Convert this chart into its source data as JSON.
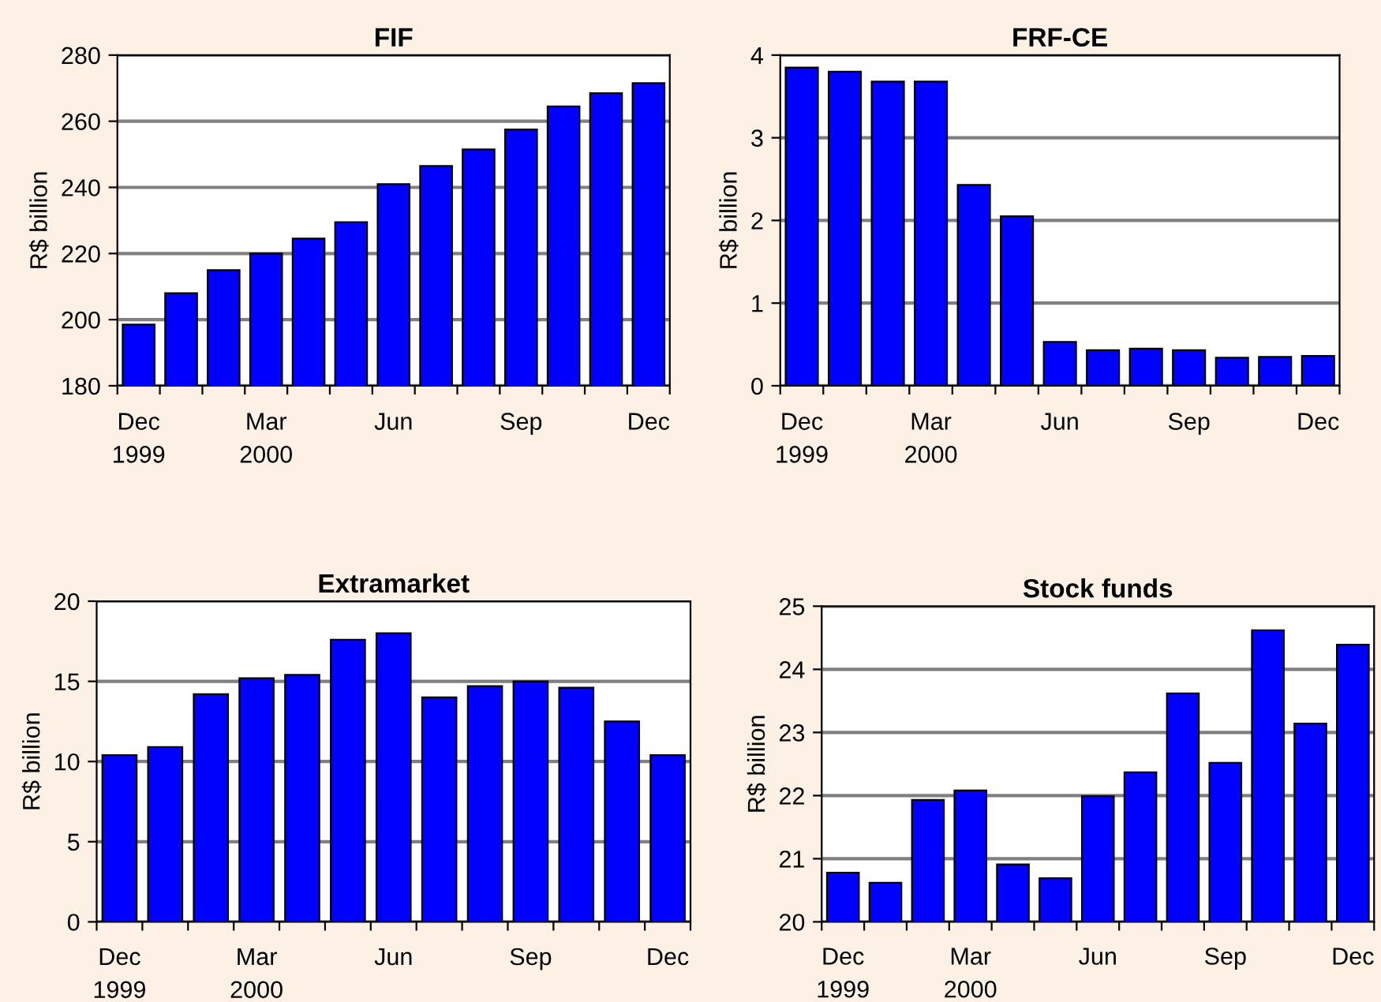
{
  "chart_data": [
    {
      "type": "bar",
      "title": "FIF",
      "ylabel": "R$ billion",
      "categories": [
        "Dec\n1999",
        null,
        null,
        "Mar\n2000",
        null,
        null,
        "Jun",
        null,
        null,
        "Sep",
        null,
        null,
        "Dec"
      ],
      "color": "#0000ff",
      "ylim": [
        180,
        280
      ],
      "yticks": [
        180,
        200,
        220,
        240,
        260,
        280
      ],
      "grid": "y",
      "values": [
        198.5,
        208,
        215,
        220,
        224.5,
        229.5,
        241,
        246.5,
        251.5,
        257.5,
        264.5,
        268.5,
        271.5
      ]
    },
    {
      "type": "bar",
      "title": "FRF-CE",
      "ylabel": "R$ billion",
      "categories": [
        "Dec\n1999",
        null,
        null,
        "Mar\n2000",
        null,
        null,
        "Jun",
        null,
        null,
        "Sep",
        null,
        null,
        "Dec"
      ],
      "color": "#0000ff",
      "ylim": [
        0,
        4
      ],
      "yticks": [
        0,
        1,
        2,
        3,
        4
      ],
      "grid": "y",
      "values": [
        3.85,
        3.8,
        3.68,
        3.68,
        2.43,
        2.05,
        0.53,
        0.43,
        0.45,
        0.43,
        0.34,
        0.35,
        0.36
      ]
    },
    {
      "type": "bar",
      "title": "Extramarket",
      "ylabel": "R$ billion",
      "categories": [
        "Dec\n1999",
        null,
        null,
        "Mar\n2000",
        null,
        null,
        "Jun",
        null,
        null,
        "Sep",
        null,
        null,
        "Dec"
      ],
      "color": "#0000ff",
      "ylim": [
        0,
        20
      ],
      "yticks": [
        0,
        5,
        10,
        15,
        20
      ],
      "grid": "y",
      "values": [
        10.4,
        10.9,
        14.2,
        15.2,
        15.4,
        17.6,
        18.0,
        14.0,
        14.7,
        15.0,
        14.6,
        12.5,
        10.4
      ]
    },
    {
      "type": "bar",
      "title": "Stock funds",
      "ylabel": "R$ billion",
      "categories": [
        "Dec\n1999",
        null,
        null,
        "Mar\n2000",
        null,
        null,
        "Jun",
        null,
        null,
        "Sep",
        null,
        null,
        "Dec"
      ],
      "color": "#0000ff",
      "ylim": [
        20,
        25
      ],
      "yticks": [
        20,
        21,
        22,
        23,
        24,
        25
      ],
      "grid": "y",
      "values": [
        20.78,
        20.62,
        21.93,
        22.08,
        20.91,
        20.69,
        21.99,
        22.37,
        23.62,
        22.52,
        24.62,
        23.14,
        24.39
      ]
    }
  ]
}
